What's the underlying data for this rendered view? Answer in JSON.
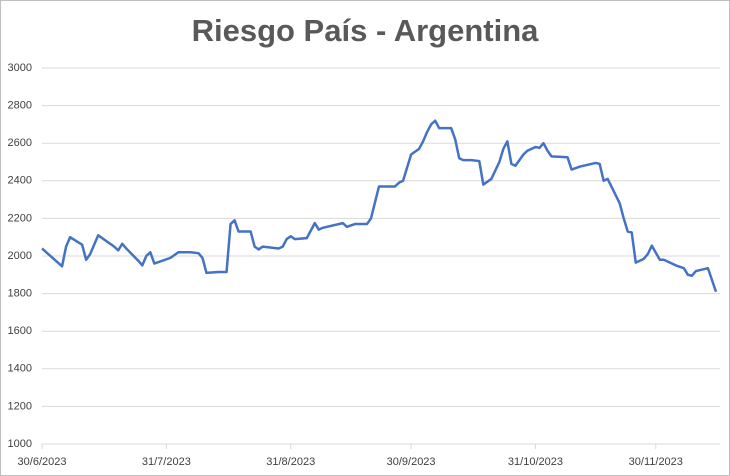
{
  "chart_data": {
    "type": "line",
    "title": "Riesgo País - Argentina",
    "x": [
      "2023-06-30",
      "2023-07-05",
      "2023-07-06",
      "2023-07-07",
      "2023-07-10",
      "2023-07-11",
      "2023-07-12",
      "2023-07-14",
      "2023-07-18",
      "2023-07-19",
      "2023-07-20",
      "2023-07-21",
      "2023-07-24",
      "2023-07-25",
      "2023-07-26",
      "2023-07-27",
      "2023-07-28",
      "2023-08-01",
      "2023-08-03",
      "2023-08-06",
      "2023-08-08",
      "2023-08-09",
      "2023-08-10",
      "2023-08-13",
      "2023-08-15",
      "2023-08-16",
      "2023-08-17",
      "2023-08-18",
      "2023-08-21",
      "2023-08-22",
      "2023-08-23",
      "2023-08-24",
      "2023-08-28",
      "2023-08-29",
      "2023-08-30",
      "2023-08-31",
      "2023-09-01",
      "2023-09-04",
      "2023-09-06",
      "2023-09-07",
      "2023-09-08",
      "2023-09-13",
      "2023-09-14",
      "2023-09-16",
      "2023-09-19",
      "2023-09-20",
      "2023-09-22",
      "2023-09-23",
      "2023-09-26",
      "2023-09-27",
      "2023-09-28",
      "2023-09-30",
      "2023-10-02",
      "2023-10-03",
      "2023-10-04",
      "2023-10-05",
      "2023-10-06",
      "2023-10-07",
      "2023-10-10",
      "2023-10-11",
      "2023-10-12",
      "2023-10-13",
      "2023-10-15",
      "2023-10-17",
      "2023-10-18",
      "2023-10-20",
      "2023-10-22",
      "2023-10-23",
      "2023-10-24",
      "2023-10-25",
      "2023-10-26",
      "2023-10-28",
      "2023-10-29",
      "2023-10-31",
      "2023-11-01",
      "2023-11-02",
      "2023-11-03",
      "2023-11-04",
      "2023-11-08",
      "2023-11-09",
      "2023-11-11",
      "2023-11-15",
      "2023-11-16",
      "2023-11-17",
      "2023-11-18",
      "2023-11-21",
      "2023-11-22",
      "2023-11-23",
      "2023-11-24",
      "2023-11-25",
      "2023-11-27",
      "2023-11-28",
      "2023-11-29",
      "2023-12-01",
      "2023-12-02",
      "2023-12-05",
      "2023-12-07",
      "2023-12-08",
      "2023-12-09",
      "2023-12-10",
      "2023-12-13",
      "2023-12-15"
    ],
    "series": [
      {
        "name": "Riesgo País",
        "color": "#4472c4",
        "values": [
          2040,
          1945,
          2050,
          2100,
          2060,
          1980,
          2010,
          2110,
          2050,
          2030,
          2065,
          2040,
          1975,
          1950,
          2000,
          2020,
          1960,
          1990,
          2020,
          2020,
          2015,
          1990,
          1910,
          1915,
          1915,
          2170,
          2190,
          2130,
          2130,
          2050,
          2035,
          2050,
          2040,
          2050,
          2090,
          2105,
          2090,
          2095,
          2175,
          2140,
          2150,
          2175,
          2155,
          2170,
          2170,
          2200,
          2370,
          2370,
          2370,
          2390,
          2400,
          2540,
          2570,
          2610,
          2660,
          2700,
          2720,
          2680,
          2680,
          2620,
          2520,
          2510,
          2510,
          2505,
          2380,
          2410,
          2500,
          2570,
          2610,
          2490,
          2480,
          2540,
          2560,
          2580,
          2575,
          2600,
          2560,
          2530,
          2525,
          2460,
          2475,
          2495,
          2490,
          2400,
          2410,
          2280,
          2200,
          2130,
          2125,
          1965,
          1985,
          2010,
          2055,
          1980,
          1980,
          1950,
          1935,
          1900,
          1895,
          1920,
          1935,
          1810
        ]
      }
    ],
    "xlim": [
      "2023-06-30",
      "2023-12-16"
    ],
    "xticks": [
      {
        "value": "2023-06-30",
        "label": "30/6/2023"
      },
      {
        "value": "2023-07-31",
        "label": "31/7/2023"
      },
      {
        "value": "2023-08-31",
        "label": "31/8/2023"
      },
      {
        "value": "2023-09-30",
        "label": "30/9/2023"
      },
      {
        "value": "2023-10-31",
        "label": "31/10/2023"
      },
      {
        "value": "2023-11-30",
        "label": "30/11/2023"
      }
    ],
    "ylim": [
      1000,
      3000
    ],
    "yticks": [
      1000,
      1200,
      1400,
      1600,
      1800,
      2000,
      2200,
      2400,
      2600,
      2800,
      3000
    ],
    "grid": true
  }
}
